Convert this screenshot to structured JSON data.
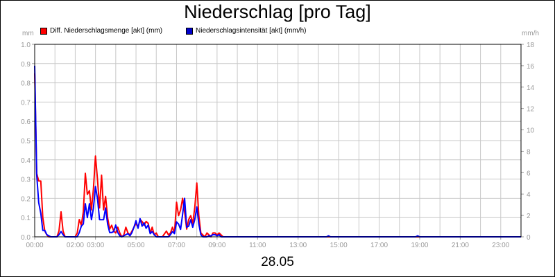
{
  "chart_data": {
    "type": "line",
    "title": "Niederschlag [pro Tag]",
    "date": "28.05",
    "left_axis": {
      "unit": "mm",
      "min": 0,
      "max": 1.0,
      "ticks": [
        "0.0",
        "0.1",
        "0.2",
        "0.3",
        "0.4",
        "0.5",
        "0.6",
        "0.7",
        "0.8",
        "0.9",
        "1.0"
      ]
    },
    "right_axis": {
      "unit": "mm/h",
      "min": 0,
      "max": 18,
      "ticks": [
        "0",
        "2",
        "4",
        "6",
        "8",
        "10",
        "12",
        "14",
        "16",
        "18"
      ]
    },
    "x_axis": {
      "min_hour": 0,
      "max_hour": 24,
      "ticks": [
        "00:00",
        "02:00",
        "03:00",
        "05:00",
        "07:00",
        "09:00",
        "11:00",
        "13:00",
        "15:00",
        "17:00",
        "19:00",
        "21:00",
        "23:00"
      ],
      "tick_hours": [
        0,
        2,
        3,
        5,
        7,
        9,
        11,
        13,
        15,
        17,
        19,
        21,
        23
      ]
    },
    "legend_position": "top-left",
    "grid": true,
    "series": [
      {
        "name": "Diff. Niederschlagsmenge [akt] (mm)",
        "color": "#ff0000",
        "axis": "left",
        "points": [
          [
            0.0,
            0.85
          ],
          [
            0.1,
            0.33
          ],
          [
            0.2,
            0.29
          ],
          [
            0.3,
            0.29
          ],
          [
            0.4,
            0.1
          ],
          [
            0.5,
            0.03
          ],
          [
            0.6,
            0.01
          ],
          [
            0.7,
            0.0
          ],
          [
            1.0,
            0.0
          ],
          [
            1.1,
            0.0
          ],
          [
            1.2,
            0.03
          ],
          [
            1.3,
            0.13
          ],
          [
            1.4,
            0.03
          ],
          [
            1.5,
            0.0
          ],
          [
            2.0,
            0.0
          ],
          [
            2.1,
            0.02
          ],
          [
            2.2,
            0.09
          ],
          [
            2.3,
            0.06
          ],
          [
            2.4,
            0.13
          ],
          [
            2.5,
            0.33
          ],
          [
            2.6,
            0.22
          ],
          [
            2.7,
            0.24
          ],
          [
            2.8,
            0.14
          ],
          [
            2.9,
            0.25
          ],
          [
            3.0,
            0.42
          ],
          [
            3.1,
            0.3
          ],
          [
            3.2,
            0.15
          ],
          [
            3.3,
            0.32
          ],
          [
            3.4,
            0.14
          ],
          [
            3.5,
            0.21
          ],
          [
            3.6,
            0.1
          ],
          [
            3.7,
            0.04
          ],
          [
            3.8,
            0.06
          ],
          [
            3.9,
            0.03
          ],
          [
            4.0,
            0.02
          ],
          [
            4.1,
            0.05
          ],
          [
            4.2,
            0.02
          ],
          [
            4.3,
            0.0
          ],
          [
            4.4,
            0.01
          ],
          [
            4.5,
            0.05
          ],
          [
            4.6,
            0.02
          ],
          [
            4.7,
            0.01
          ],
          [
            4.8,
            0.03
          ],
          [
            4.9,
            0.05
          ],
          [
            5.0,
            0.07
          ],
          [
            5.1,
            0.05
          ],
          [
            5.2,
            0.09
          ],
          [
            5.3,
            0.08
          ],
          [
            5.4,
            0.06
          ],
          [
            5.5,
            0.08
          ],
          [
            5.6,
            0.07
          ],
          [
            5.7,
            0.02
          ],
          [
            5.8,
            0.05
          ],
          [
            5.9,
            0.01
          ],
          [
            6.0,
            0.02
          ],
          [
            6.1,
            0.0
          ],
          [
            6.3,
            0.0
          ],
          [
            6.5,
            0.03
          ],
          [
            6.6,
            0.01
          ],
          [
            6.7,
            0.02
          ],
          [
            6.8,
            0.05
          ],
          [
            6.9,
            0.02
          ],
          [
            7.0,
            0.18
          ],
          [
            7.1,
            0.11
          ],
          [
            7.2,
            0.14
          ],
          [
            7.3,
            0.2
          ],
          [
            7.4,
            0.13
          ],
          [
            7.5,
            0.04
          ],
          [
            7.6,
            0.09
          ],
          [
            7.7,
            0.11
          ],
          [
            7.8,
            0.07
          ],
          [
            7.9,
            0.15
          ],
          [
            8.0,
            0.28
          ],
          [
            8.1,
            0.11
          ],
          [
            8.2,
            0.02
          ],
          [
            8.3,
            0.01
          ],
          [
            8.4,
            0.0
          ],
          [
            8.5,
            0.02
          ],
          [
            8.6,
            0.01
          ],
          [
            8.7,
            0.0
          ],
          [
            8.8,
            0.02
          ],
          [
            8.9,
            0.02
          ],
          [
            9.0,
            0.01
          ],
          [
            9.1,
            0.02
          ],
          [
            9.2,
            0.01
          ],
          [
            9.3,
            0.0
          ],
          [
            24.0,
            0.0
          ]
        ]
      },
      {
        "name": "Niederschlagsintensität [akt] (mm/h)",
        "color": "#0000ff",
        "axis": "right",
        "points": [
          [
            0.0,
            16.0
          ],
          [
            0.1,
            5.8
          ],
          [
            0.2,
            3.2
          ],
          [
            0.3,
            2.2
          ],
          [
            0.4,
            0.6
          ],
          [
            0.5,
            0.6
          ],
          [
            0.6,
            0.2
          ],
          [
            0.7,
            0.1
          ],
          [
            0.8,
            0.0
          ],
          [
            1.1,
            0.0
          ],
          [
            1.2,
            0.2
          ],
          [
            1.3,
            0.5
          ],
          [
            1.4,
            0.2
          ],
          [
            1.5,
            0.0
          ],
          [
            2.1,
            0.0
          ],
          [
            2.2,
            0.4
          ],
          [
            2.3,
            1.0
          ],
          [
            2.4,
            1.2
          ],
          [
            2.5,
            3.1
          ],
          [
            2.6,
            1.8
          ],
          [
            2.7,
            3.1
          ],
          [
            2.8,
            1.6
          ],
          [
            2.9,
            2.7
          ],
          [
            3.0,
            4.7
          ],
          [
            3.1,
            3.6
          ],
          [
            3.2,
            1.6
          ],
          [
            3.3,
            1.6
          ],
          [
            3.4,
            1.6
          ],
          [
            3.5,
            2.7
          ],
          [
            3.6,
            1.2
          ],
          [
            3.7,
            0.4
          ],
          [
            3.8,
            0.4
          ],
          [
            3.9,
            0.5
          ],
          [
            4.0,
            1.1
          ],
          [
            4.1,
            0.4
          ],
          [
            4.2,
            0.1
          ],
          [
            4.3,
            0.0
          ],
          [
            4.4,
            0.1
          ],
          [
            4.5,
            0.2
          ],
          [
            4.6,
            0.3
          ],
          [
            4.7,
            0.1
          ],
          [
            4.8,
            0.4
          ],
          [
            4.9,
            0.9
          ],
          [
            5.0,
            1.5
          ],
          [
            5.1,
            0.8
          ],
          [
            5.2,
            1.7
          ],
          [
            5.3,
            1.0
          ],
          [
            5.4,
            1.3
          ],
          [
            5.5,
            0.8
          ],
          [
            5.6,
            1.1
          ],
          [
            5.7,
            0.3
          ],
          [
            5.8,
            0.5
          ],
          [
            5.9,
            0.2
          ],
          [
            6.0,
            0.0
          ],
          [
            6.6,
            0.0
          ],
          [
            6.7,
            0.2
          ],
          [
            6.8,
            0.5
          ],
          [
            6.9,
            0.3
          ],
          [
            7.0,
            1.4
          ],
          [
            7.1,
            1.2
          ],
          [
            7.2,
            0.7
          ],
          [
            7.3,
            2.1
          ],
          [
            7.4,
            3.6
          ],
          [
            7.5,
            0.9
          ],
          [
            7.6,
            1.0
          ],
          [
            7.7,
            1.6
          ],
          [
            7.8,
            0.9
          ],
          [
            7.9,
            1.6
          ],
          [
            8.0,
            2.8
          ],
          [
            8.1,
            1.2
          ],
          [
            8.2,
            0.2
          ],
          [
            8.3,
            0.0
          ],
          [
            8.5,
            0.0
          ],
          [
            8.6,
            0.1
          ],
          [
            8.7,
            0.1
          ],
          [
            8.8,
            0.2
          ],
          [
            8.9,
            0.2
          ],
          [
            9.0,
            0.1
          ],
          [
            9.1,
            0.2
          ],
          [
            9.2,
            0.0
          ],
          [
            14.4,
            0.0
          ],
          [
            14.5,
            0.1
          ],
          [
            14.6,
            0.0
          ],
          [
            18.8,
            0.0
          ],
          [
            18.9,
            0.1
          ],
          [
            19.0,
            0.0
          ],
          [
            24.0,
            0.0
          ]
        ]
      }
    ]
  }
}
